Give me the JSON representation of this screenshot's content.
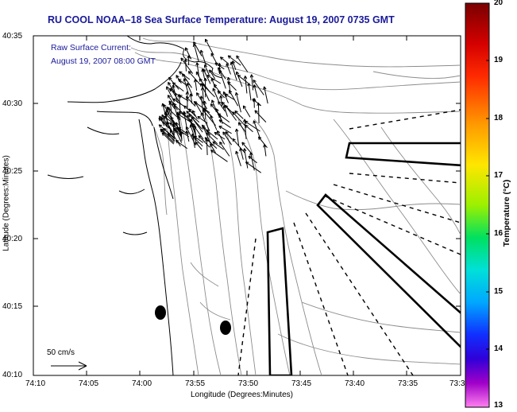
{
  "title": "RU COOL  NOAA–18  Sea Surface Temperature:  August 19, 2007 0735 GMT",
  "current_note": {
    "line1": "Raw Surface Current:",
    "line2": "August 19, 2007 08:00 GMT"
  },
  "y_axis": {
    "title": "Latitude (Degrees:Minutes)",
    "ticks": [
      "40:35",
      "40:30",
      "40:25",
      "40:20",
      "40:15",
      "40:10"
    ]
  },
  "x_axis": {
    "title": "Longitude (Degrees:Minutes)",
    "ticks": [
      "74:10",
      "74:05",
      "74:00",
      "73:55",
      "73:50",
      "73:45",
      "73:40",
      "73:35",
      "73:3"
    ]
  },
  "scale_label": "50 cm/s",
  "colorbar": {
    "title": "Temperature (°C)",
    "ticks": [
      "20",
      "19",
      "18",
      "17",
      "16",
      "15",
      "14",
      "13"
    ],
    "range": [
      13,
      20
    ]
  },
  "colors": {
    "title_text": "#1a1a9a",
    "contour": "#8c8c8c",
    "coast": "#000000",
    "vectors": "#000000"
  }
}
